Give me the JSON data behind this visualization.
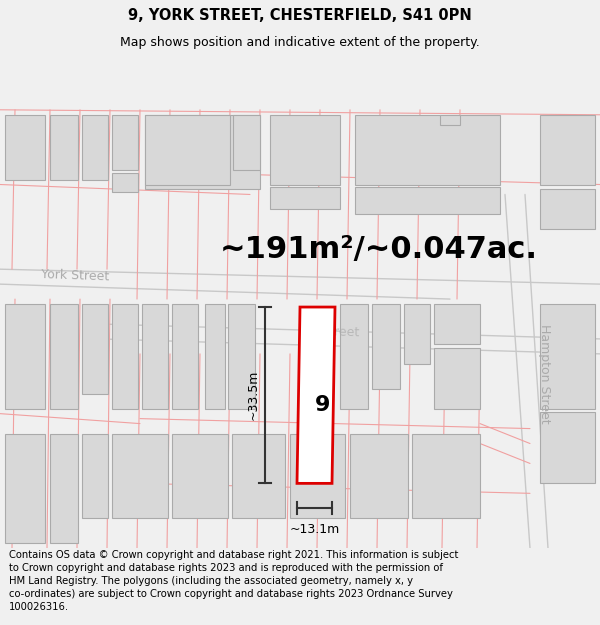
{
  "title_line1": "9, YORK STREET, CHESTERFIELD, S41 0PN",
  "title_line2": "Map shows position and indicative extent of the property.",
  "area_label": "~191m²/~0.047ac.",
  "property_number": "9",
  "dim_vertical": "~33.5m",
  "dim_horizontal": "~13.1m",
  "footer_text": "Contains OS data © Crown copyright and database right 2021. This information is subject to Crown copyright and database rights 2023 and is reproduced with the permission of HM Land Registry. The polygons (including the associated geometry, namely x, y co-ordinates) are subject to Crown copyright and database rights 2023 Ordnance Survey 100026316.",
  "bg_color": "#f0f0f0",
  "map_bg": "#ffffff",
  "building_fill": "#d8d8d8",
  "building_edge": "#aaaaaa",
  "road_line_color": "#f0a0a0",
  "road_line_color2": "#c8c8c8",
  "property_outline_color": "#dd0000",
  "property_fill": "#ffffff",
  "dim_line_color": "#333333",
  "street_label_color": "#aaaaaa",
  "title_fontsize": 10.5,
  "subtitle_fontsize": 9,
  "area_fontsize": 22,
  "footer_fontsize": 7.2
}
